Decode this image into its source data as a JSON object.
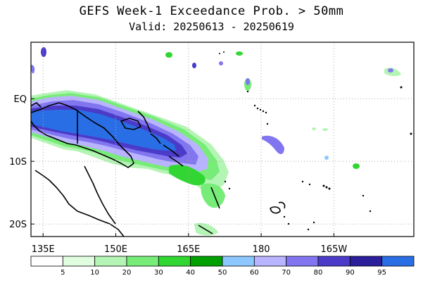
{
  "title": "GEFS Week-1 Exceedance Prob. > 50mm",
  "subtitle": "Valid: 20250613 - 20250619",
  "axes": {
    "x_ticks": [
      {
        "lon": 135,
        "label": "135E"
      },
      {
        "lon": 150,
        "label": "150E"
      },
      {
        "lon": 165,
        "label": "165E"
      },
      {
        "lon": 180,
        "label": "180"
      },
      {
        "lon": 195,
        "label": "165W"
      }
    ],
    "y_ticks": [
      {
        "lat": 0,
        "label": "EQ"
      },
      {
        "lat": -10,
        "label": "10S"
      },
      {
        "lat": -20,
        "label": "20S"
      }
    ],
    "lon_range": [
      132.5,
      211.5
    ],
    "lat_range": [
      -22,
      9
    ],
    "grid": "dotted"
  },
  "colorbar": {
    "colors": [
      "#ffffff",
      "#e0fde0",
      "#b4f4b4",
      "#78ec78",
      "#32d632",
      "#00a000",
      "#8cc8ff",
      "#b9b4ff",
      "#8276f0",
      "#4a3cc8",
      "#2a1e9a",
      "#2a6ee6"
    ],
    "labels": [
      "5",
      "10",
      "20",
      "30",
      "40",
      "50",
      "60",
      "70",
      "80",
      "90",
      "95"
    ]
  },
  "chart_data": {
    "type": "heatmap",
    "title": "GEFS Week-1 Exceedance Prob. > 50mm",
    "subtitle": "Valid: 20250613 - 20250619",
    "xlabel": "",
    "ylabel": "",
    "units": "%",
    "levels": [
      5,
      10,
      20,
      30,
      40,
      50,
      60,
      70,
      80,
      90,
      95
    ],
    "regions": [
      {
        "name": "",
        "level_max": 95,
        "lon_range": [
          132.5,
          166
        ],
        "lat_range": [
          -10,
          1
        ]
      },
      {
        "name": "",
        "level_max": 40,
        "lon_range": [
          157,
          168
        ],
        "lat_range": [
          -18,
          -9
        ]
      }
    ]
  }
}
